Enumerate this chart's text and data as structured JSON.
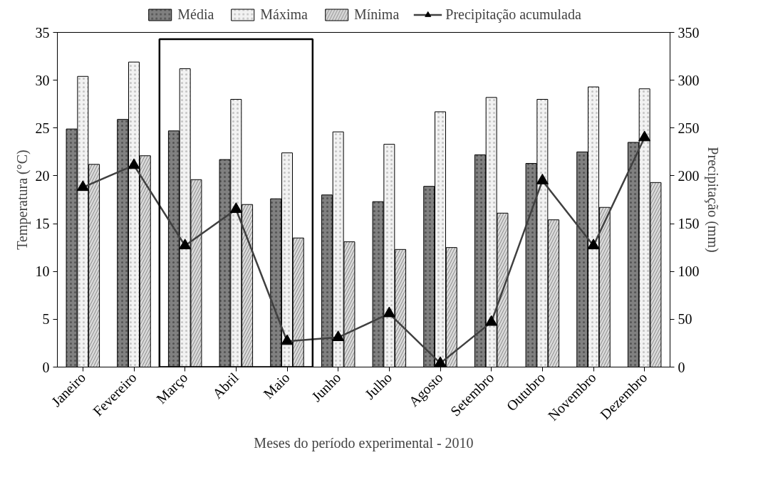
{
  "chart_data": {
    "type": "bar",
    "xlabel": "Meses do período experimental - 2010",
    "ylabel": "Temperatura (°C)",
    "y2label": "Precipitação (mm)",
    "categories": [
      "Janeiro",
      "Fevereiro",
      "Março",
      "Abril",
      "Maio",
      "Junho",
      "Julho",
      "Agosto",
      "Setembro",
      "Outubro",
      "Novembro",
      "Dezembro"
    ],
    "series": [
      {
        "name": "Média",
        "color": "#808080",
        "values": [
          24.9,
          25.9,
          24.7,
          21.7,
          17.6,
          18.0,
          17.3,
          18.9,
          22.2,
          21.3,
          22.5,
          23.5
        ]
      },
      {
        "name": "Máxima",
        "color": "#f2f2f2",
        "values": [
          30.4,
          31.9,
          31.2,
          28.0,
          22.4,
          24.6,
          23.3,
          26.7,
          28.2,
          28.0,
          29.3,
          29.1
        ]
      },
      {
        "name": "Mínima",
        "color": "#d9d9d9",
        "values": [
          21.2,
          22.1,
          19.6,
          17.0,
          13.5,
          13.1,
          12.3,
          12.5,
          16.1,
          15.4,
          16.7,
          19.3
        ]
      },
      {
        "name": "Precipitação acumulada",
        "type": "line",
        "axis": "y2",
        "color": "#404040",
        "marker": "triangle",
        "values": [
          188,
          211,
          127,
          165,
          27,
          31,
          56,
          4,
          47,
          195,
          127,
          240
        ]
      }
    ],
    "ylim": [
      0,
      35
    ],
    "yticks": [
      0,
      5,
      10,
      15,
      20,
      25,
      30,
      35
    ],
    "y2lim": [
      0,
      350
    ],
    "y2ticks": [
      0,
      50,
      100,
      150,
      200,
      250,
      300,
      350
    ],
    "grid": false,
    "legend": "top"
  }
}
